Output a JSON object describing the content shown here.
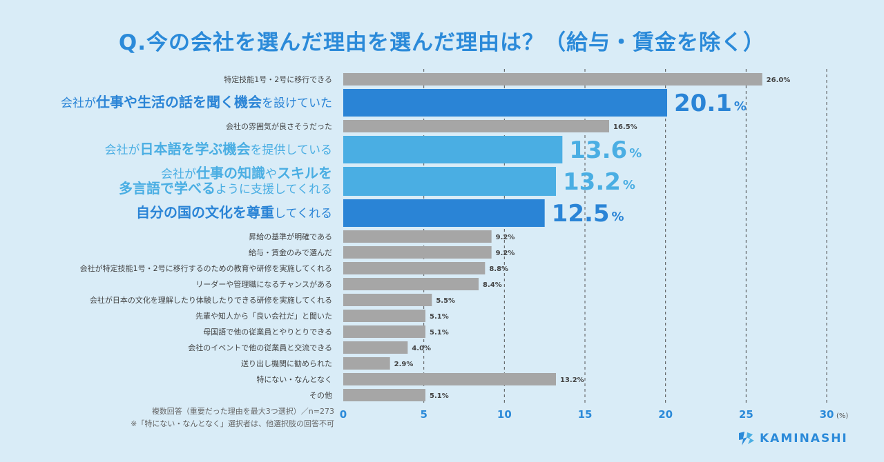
{
  "title": "Q.今の会社を選んだ理由を選んだ理由は？（給与・賃金を除く）",
  "notes": [
    "複数回答（重要だった理由を最大3つ選択）／n=273",
    "※「特にない・なんとなく」選択者は、他選択肢の回答不可"
  ],
  "brand": "KAMINASHI",
  "colors": {
    "background": "#d9ecf7",
    "gray_bar": "#a6a6a6",
    "dark_blue": "#2a84d6",
    "light_blue": "#4aaee3",
    "label_text": "#444444",
    "title": "#2b8ad9"
  },
  "chart_data": {
    "type": "bar",
    "orientation": "horizontal",
    "title": "Q.今の会社を選んだ理由を選んだ理由は？（給与・賃金を除く）",
    "x_unit": "(%)",
    "xlim": [
      0,
      30
    ],
    "xticks": [
      0,
      5,
      10,
      15,
      20,
      25,
      30
    ],
    "grid": "dashed vertical",
    "categories": [
      {
        "label_lines": [
          [
            {
              "t": "特定技能1号・2号に移行できる",
              "b": false
            }
          ]
        ],
        "value": 26.0,
        "value_label": "26.0%",
        "style": "gray"
      },
      {
        "label_lines": [
          [
            {
              "t": "会社が",
              "b": false
            },
            {
              "t": "仕事や生活の話を聞く機会",
              "b": true
            },
            {
              "t": "を設けていた",
              "b": false
            }
          ]
        ],
        "value": 20.1,
        "value_label": "20.1",
        "style": "dark"
      },
      {
        "label_lines": [
          [
            {
              "t": "会社の雰囲気が良さそうだった",
              "b": false
            }
          ]
        ],
        "value": 16.5,
        "value_label": "16.5%",
        "style": "gray"
      },
      {
        "label_lines": [
          [
            {
              "t": "会社が",
              "b": false
            },
            {
              "t": "日本語を学ぶ機会",
              "b": true
            },
            {
              "t": "を提供している",
              "b": false
            }
          ]
        ],
        "value": 13.6,
        "value_label": "13.6",
        "style": "light"
      },
      {
        "label_lines": [
          [
            {
              "t": "会社が",
              "b": false
            },
            {
              "t": "仕事の知識",
              "b": true
            },
            {
              "t": "や",
              "b": false
            },
            {
              "t": "スキル",
              "b": true
            },
            {
              "t": "を",
              "b": true
            }
          ],
          [
            {
              "t": "多言語で学べる",
              "b": true
            },
            {
              "t": "ように支援してくれる",
              "b": false
            }
          ]
        ],
        "value": 13.2,
        "value_label": "13.2",
        "style": "light"
      },
      {
        "label_lines": [
          [
            {
              "t": "自分の国の文化を尊重",
              "b": true
            },
            {
              "t": "してくれる",
              "b": false
            }
          ]
        ],
        "value": 12.5,
        "value_label": "12.5",
        "style": "dark"
      },
      {
        "label_lines": [
          [
            {
              "t": "昇給の基準が明確である",
              "b": false
            }
          ]
        ],
        "value": 9.2,
        "value_label": "9.2%",
        "style": "gray"
      },
      {
        "label_lines": [
          [
            {
              "t": "給与・賃金のみで選んだ",
              "b": false
            }
          ]
        ],
        "value": 9.2,
        "value_label": "9.2%",
        "style": "gray"
      },
      {
        "label_lines": [
          [
            {
              "t": "会社が特定技能1号・2号に移行するのための教育や研修を実施してくれる",
              "b": false
            }
          ]
        ],
        "value": 8.8,
        "value_label": "8.8%",
        "style": "gray"
      },
      {
        "label_lines": [
          [
            {
              "t": "リーダーや管理職になるチャンスがある",
              "b": false
            }
          ]
        ],
        "value": 8.4,
        "value_label": "8.4%",
        "style": "gray"
      },
      {
        "label_lines": [
          [
            {
              "t": "会社が日本の文化を理解したり体験したりできる研修を実施してくれる",
              "b": false
            }
          ]
        ],
        "value": 5.5,
        "value_label": "5.5%",
        "style": "gray"
      },
      {
        "label_lines": [
          [
            {
              "t": "先輩や知人から「良い会社だ」と聞いた",
              "b": false
            }
          ]
        ],
        "value": 5.1,
        "value_label": "5.1%",
        "style": "gray"
      },
      {
        "label_lines": [
          [
            {
              "t": "母国語で他の従業員とやりとりできる",
              "b": false
            }
          ]
        ],
        "value": 5.1,
        "value_label": "5.1%",
        "style": "gray"
      },
      {
        "label_lines": [
          [
            {
              "t": "会社のイベントで他の従業員と交流できる",
              "b": false
            }
          ]
        ],
        "value": 4.0,
        "value_label": "4.0%",
        "style": "gray"
      },
      {
        "label_lines": [
          [
            {
              "t": "送り出し機関に勧められた",
              "b": false
            }
          ]
        ],
        "value": 2.9,
        "value_label": "2.9%",
        "style": "gray"
      },
      {
        "label_lines": [
          [
            {
              "t": "特にない・なんとなく",
              "b": false
            }
          ]
        ],
        "value": 13.2,
        "value_label": "13.2%",
        "style": "gray"
      },
      {
        "label_lines": [
          [
            {
              "t": "その他",
              "b": false
            }
          ]
        ],
        "value": 5.1,
        "value_label": "5.1%",
        "style": "gray"
      }
    ]
  }
}
